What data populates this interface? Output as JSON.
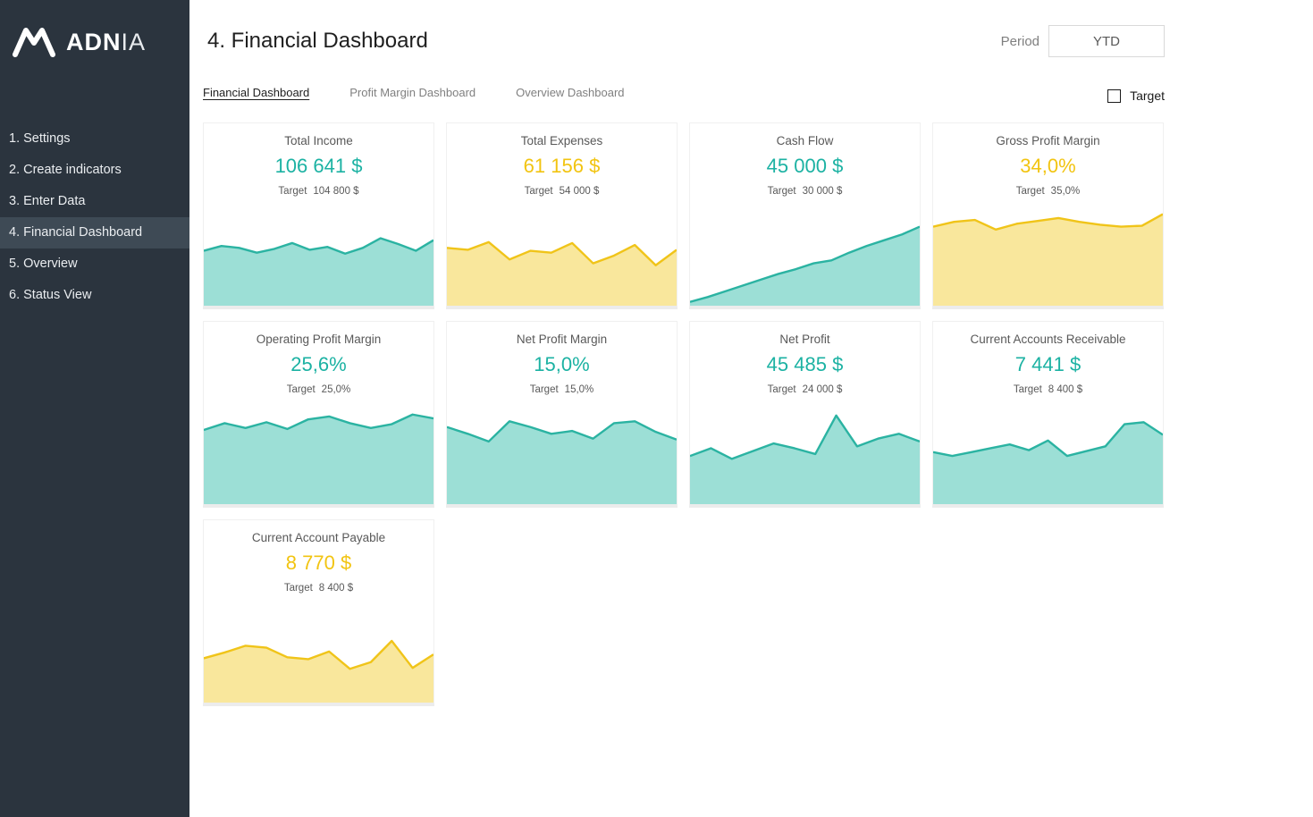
{
  "sidebar": {
    "logo": {
      "bold": "ADN",
      "light": "IA"
    },
    "items": [
      {
        "label": "1. Settings",
        "active": false
      },
      {
        "label": "2. Create indicators",
        "active": false
      },
      {
        "label": "3. Enter Data",
        "active": false
      },
      {
        "label": "4. Financial Dashboard",
        "active": true
      },
      {
        "label": "5. Overview",
        "active": false
      },
      {
        "label": "6. Status View",
        "active": false
      }
    ]
  },
  "header": {
    "title": "4. Financial Dashboard",
    "period_label": "Period",
    "period_value": "YTD"
  },
  "tabs": [
    {
      "label": "Financial Dashboard",
      "active": true
    },
    {
      "label": "Profit Margin Dashboard",
      "active": false
    },
    {
      "label": "Overview Dashboard",
      "active": false
    }
  ],
  "target_toggle": {
    "label": "Target",
    "checked": false
  },
  "colors": {
    "sidebar_bg": "#2b343e",
    "sidebar_active_bg": "#3e4a55",
    "teal_text": "#1cb2a3",
    "teal_line": "#2bb3a2",
    "teal_fill": "#9cdfd6",
    "yellow_text": "#f2c411",
    "yellow_line": "#f0c419",
    "yellow_fill": "#f9e79c",
    "muted_text": "#595959"
  },
  "cards": [
    {
      "title": "Total Income",
      "value": "106 641 $",
      "target_label": "Target",
      "target_value": "104 800 $",
      "color": "teal",
      "chart": {
        "type": "area",
        "values": [
          57,
          62,
          60,
          55,
          59,
          65,
          58,
          61,
          54,
          60,
          70,
          64,
          57,
          68
        ]
      }
    },
    {
      "title": "Total Expenses",
      "value": "61 156 $",
      "target_label": "Target",
      "target_value": "54 000 $",
      "color": "yellow",
      "chart": {
        "type": "area",
        "values": [
          60,
          58,
          66,
          48,
          57,
          55,
          65,
          44,
          52,
          63,
          42,
          58
        ]
      }
    },
    {
      "title": "Cash Flow",
      "value": "45 000 $",
      "target_label": "Target",
      "target_value": "30 000 $",
      "color": "teal",
      "chart": {
        "type": "area",
        "values": [
          4,
          9,
          15,
          21,
          27,
          33,
          38,
          44,
          47,
          55,
          62,
          68,
          74,
          82
        ]
      }
    },
    {
      "title": "Gross Profit Margin",
      "value": "34,0%",
      "target_label": "Target",
      "target_value": "35,0%",
      "color": "yellow",
      "chart": {
        "type": "area",
        "values": [
          82,
          87,
          89,
          79,
          85,
          88,
          91,
          87,
          84,
          82,
          83,
          95
        ]
      }
    },
    {
      "title": "Operating Profit Margin",
      "value": "25,6%",
      "target_label": "Target",
      "target_value": "25,0%",
      "color": "teal",
      "chart": {
        "type": "area",
        "values": [
          77,
          84,
          79,
          85,
          78,
          88,
          91,
          84,
          79,
          83,
          93,
          89
        ]
      }
    },
    {
      "title": "Net Profit Margin",
      "value": "15,0%",
      "target_label": "Target",
      "target_value": "15,0%",
      "color": "teal",
      "chart": {
        "type": "area",
        "values": [
          80,
          73,
          65,
          86,
          80,
          73,
          76,
          68,
          84,
          86,
          75,
          67
        ]
      }
    },
    {
      "title": "Net Profit",
      "value": "45 485 $",
      "target_label": "Target",
      "target_value": "24 000 $",
      "color": "teal",
      "chart": {
        "type": "area",
        "values": [
          50,
          58,
          47,
          55,
          63,
          58,
          52,
          92,
          60,
          68,
          73,
          65
        ]
      }
    },
    {
      "title": "Current Accounts Receivable",
      "value": "7 441 $",
      "target_label": "Target",
      "target_value": "8 400 $",
      "color": "teal",
      "chart": {
        "type": "area",
        "values": [
          54,
          50,
          54,
          58,
          62,
          56,
          66,
          50,
          55,
          60,
          83,
          85,
          72
        ]
      }
    },
    {
      "title": "Current Account Payable",
      "value": "8 770 $",
      "target_label": "Target",
      "target_value": "8 400 $",
      "color": "yellow",
      "chart": {
        "type": "area",
        "values": [
          46,
          52,
          59,
          57,
          47,
          45,
          53,
          35,
          42,
          64,
          36,
          50
        ]
      }
    }
  ]
}
